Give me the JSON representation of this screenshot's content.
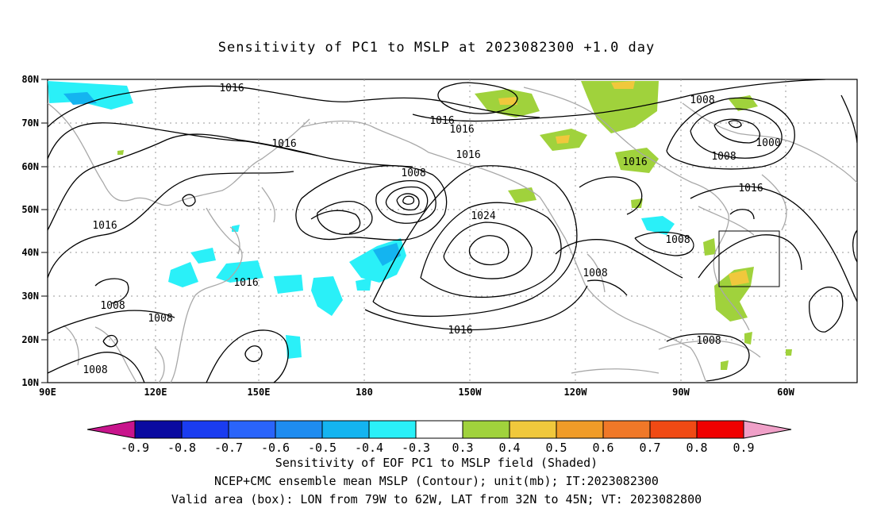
{
  "title": "Sensitivity of PC1 to MSLP at 2023082300 +1.0 day",
  "map": {
    "lat_labels": [
      "80N",
      "70N",
      "60N",
      "50N",
      "40N",
      "30N",
      "20N",
      "10N"
    ],
    "lon_labels": [
      "90E",
      "120E",
      "150E",
      "180",
      "150W",
      "120W",
      "90W",
      "60W"
    ],
    "contour_labels": [
      {
        "text": "1016",
        "id": "c1"
      },
      {
        "text": "1016",
        "id": "c2"
      },
      {
        "text": "1016",
        "id": "c3"
      },
      {
        "text": "1016",
        "id": "c4"
      },
      {
        "text": "1016",
        "id": "c5"
      },
      {
        "text": "1016",
        "id": "c6"
      },
      {
        "text": "1016",
        "id": "c7"
      },
      {
        "text": "1016",
        "id": "c8"
      },
      {
        "text": "1016",
        "id": "c9"
      },
      {
        "text": "1008",
        "id": "c10"
      },
      {
        "text": "1008",
        "id": "c11"
      },
      {
        "text": "1008",
        "id": "c12"
      },
      {
        "text": "1008",
        "id": "c13"
      },
      {
        "text": "1008",
        "id": "c14"
      },
      {
        "text": "1008",
        "id": "c15"
      },
      {
        "text": "1008",
        "id": "c16"
      },
      {
        "text": "1008",
        "id": "c17"
      },
      {
        "text": "1008",
        "id": "c18"
      },
      {
        "text": "1000",
        "id": "c19"
      },
      {
        "text": "1024",
        "id": "c20"
      },
      {
        "text": "1016",
        "id": "c21"
      }
    ],
    "valid_box": {
      "lon_range": [
        "79W",
        "62W"
      ],
      "lat_range": [
        "32N",
        "45N"
      ]
    }
  },
  "colorbar": {
    "labels": [
      "-0.9",
      "-0.8",
      "-0.7",
      "-0.6",
      "-0.5",
      "-0.4",
      "-0.3",
      "0.3",
      "0.4",
      "0.5",
      "0.6",
      "0.7",
      "0.8",
      "0.9"
    ],
    "colors": [
      "#0a0aa0",
      "#1a3cf0",
      "#2a64fa",
      "#1e8cf0",
      "#14b4f0",
      "#2af0f8",
      "#ffffff",
      "#a0d23c",
      "#f0c83c",
      "#f09c28",
      "#f07828",
      "#f04a14",
      "#f00000"
    ],
    "low_end_color": "#c8148c",
    "high_end_color": "#f0a0c8"
  },
  "captions": {
    "line1": "Sensitivity of EOF PC1 to MSLP field (Shaded)",
    "line2": "NCEP+CMC ensemble mean MSLP (Contour); unit(mb); IT:2023082300",
    "line3": "Valid area (box): LON from 79W to 62W, LAT from 32N to 45N; VT: 2023082800"
  }
}
